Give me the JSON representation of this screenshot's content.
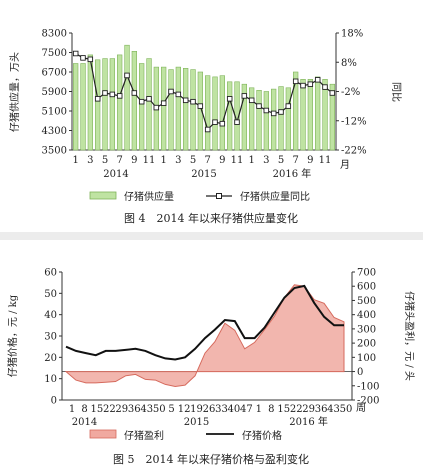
{
  "chart_data": [
    {
      "type": "bar+line",
      "caption": "图 4　2014 年以来仔猪供应量变化",
      "ylabel_left": "仔猪供应量，万头",
      "ylabel_right": "同比",
      "ylim_left": [
        3500,
        8300
      ],
      "ylim_right": [
        -22,
        18
      ],
      "yticks_left": [
        "8300",
        "7500",
        "6700",
        "5900",
        "5100",
        "4300",
        "3500"
      ],
      "yticks_right": [
        "18%",
        "8%",
        "-2%",
        "-12%",
        "-22%"
      ],
      "x_tick_labels": [
        "1",
        "3",
        "5",
        "7",
        "9",
        "11",
        "1",
        "3",
        "5",
        "7",
        "9",
        "11",
        "1",
        "3",
        "5",
        "7",
        "9",
        "11"
      ],
      "x_unit": "月",
      "year_labels": [
        "2014",
        "2015",
        "2016 年"
      ],
      "series": [
        {
          "name": "仔猪供应量",
          "kind": "bar",
          "color": "#bfe3a2",
          "values": [
            7050,
            7050,
            7400,
            7200,
            7250,
            7250,
            7400,
            7800,
            7550,
            7050,
            7250,
            6900,
            6900,
            6800,
            6900,
            6850,
            6800,
            6700,
            6550,
            6500,
            6550,
            6300,
            6300,
            6200,
            6050,
            5950,
            5900,
            6000,
            6100,
            6050,
            6700,
            6400,
            6400,
            6500,
            6400,
            6200
          ]
        },
        {
          "name": "仔猪供应量同比",
          "kind": "line",
          "color": "#222222",
          "values": [
            11,
            9.5,
            9,
            -4.5,
            -2.5,
            -3,
            -3.5,
            3.5,
            -2.5,
            -5.5,
            -4.5,
            -7.5,
            -6,
            -2,
            -3,
            -5,
            -5.5,
            -7,
            -15,
            -12.5,
            -13,
            -4.5,
            -12.5,
            -3.5,
            -5,
            -7,
            -8.5,
            -9.5,
            -9,
            -7,
            1.5,
            0,
            0.5,
            2,
            -0.5,
            -2.5
          ]
        }
      ]
    },
    {
      "type": "area+line",
      "caption": "图 5　2014 年以来仔猪价格与盈利变化",
      "ylabel_left": "仔猪价格，元 / kg",
      "ylabel_right": "仔猪头盈利，元 / 头",
      "ylim_left": [
        0,
        60
      ],
      "ylim_right": [
        -200,
        700
      ],
      "yticks_left": [
        "60",
        "50",
        "40",
        "30",
        "20",
        "10",
        "0"
      ],
      "yticks_right": [
        "700",
        "600",
        "500",
        "400",
        "300",
        "200",
        "100",
        "0",
        "-100",
        "-200"
      ],
      "x_tick_labels": [
        "1",
        "8",
        "15",
        "22",
        "29",
        "36",
        "43",
        "50",
        "5",
        "12",
        "19",
        "26",
        "33",
        "40",
        "47",
        "1",
        "8",
        "15",
        "22",
        "29",
        "36",
        "43",
        "50"
      ],
      "x_unit": "周",
      "year_labels": [
        "2014",
        "2015",
        "2016 年"
      ],
      "series": [
        {
          "name": "仔猪盈利",
          "kind": "area",
          "color": "#f0a9a0",
          "values": [
            0,
            -60,
            -80,
            -80,
            -75,
            -70,
            -30,
            -20,
            -55,
            -60,
            -90,
            -105,
            -95,
            -30,
            130,
            210,
            340,
            290,
            160,
            205,
            295,
            390,
            520,
            610,
            600,
            505,
            480,
            380,
            350
          ]
        },
        {
          "name": "仔猪价格",
          "kind": "line",
          "color": "#111111",
          "values": [
            25,
            23,
            22,
            21,
            23,
            23,
            23.5,
            24,
            23,
            21,
            19.5,
            19,
            20,
            24,
            29,
            33,
            37.5,
            37,
            29,
            29,
            34,
            41,
            48,
            52.5,
            53.5,
            45.5,
            39,
            35,
            35
          ]
        }
      ]
    }
  ]
}
